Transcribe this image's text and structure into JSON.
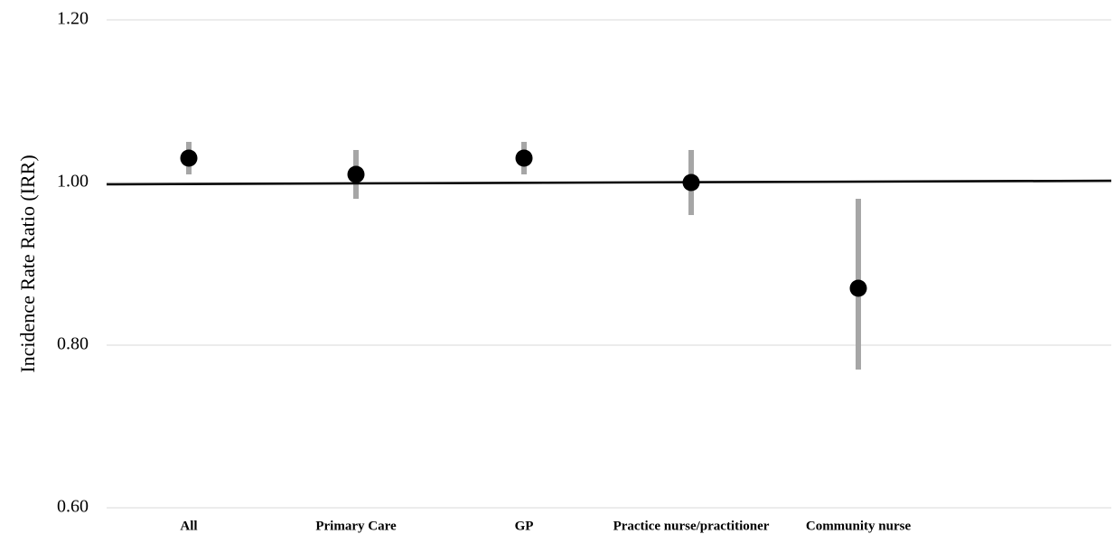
{
  "chart_data": {
    "type": "scatter",
    "ylabel": "Incidence Rate Ratio (IRR)",
    "xlabel": "",
    "ylim": [
      0.6,
      1.2
    ],
    "yticks": [
      "1.20",
      "1.00",
      "0.80",
      "0.60"
    ],
    "ytick_values": [
      1.2,
      1.0,
      0.8,
      0.6
    ],
    "reference_line": 1.0,
    "grid": true,
    "categories": [
      "All",
      "Primary Care",
      "GP",
      "Practice nurse/practitioner",
      "Community nurse"
    ],
    "points": [
      {
        "category": "All",
        "estimate": 1.03,
        "lower": 1.01,
        "upper": 1.05
      },
      {
        "category": "Primary Care",
        "estimate": 1.01,
        "lower": 0.98,
        "upper": 1.04
      },
      {
        "category": "GP",
        "estimate": 1.03,
        "lower": 1.01,
        "upper": 1.05
      },
      {
        "category": "Practice nurse/practitioner",
        "estimate": 1.0,
        "lower": 0.96,
        "upper": 1.04
      },
      {
        "category": "Community nurse",
        "estimate": 0.87,
        "lower": 0.77,
        "upper": 0.98
      }
    ],
    "colors": {
      "marker": "#000000",
      "ci_bar": "#a6a6a6",
      "reference_line": "#000000",
      "grid": "#d9d9d9"
    }
  }
}
